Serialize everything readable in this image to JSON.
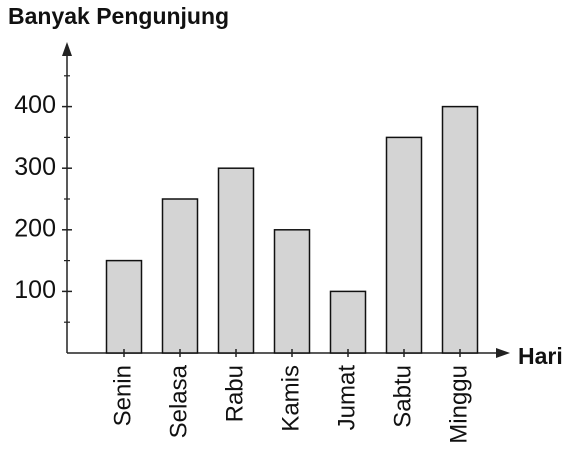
{
  "chart_data": {
    "type": "bar",
    "y_axis_label": "Banyak Pengunjung",
    "x_axis_label": "Hari",
    "categories": [
      "Senin",
      "Selasa",
      "Rabu",
      "Kamis",
      "Jumat",
      "Sabtu",
      "Minggu"
    ],
    "values": [
      150,
      250,
      300,
      200,
      100,
      350,
      400
    ],
    "color": "#d4d4d4",
    "ylim": [
      0,
      500
    ],
    "yticks": [
      100,
      200,
      300,
      400
    ],
    "minor_yticks": [
      50,
      150,
      250,
      350,
      450
    ],
    "grid": false
  }
}
